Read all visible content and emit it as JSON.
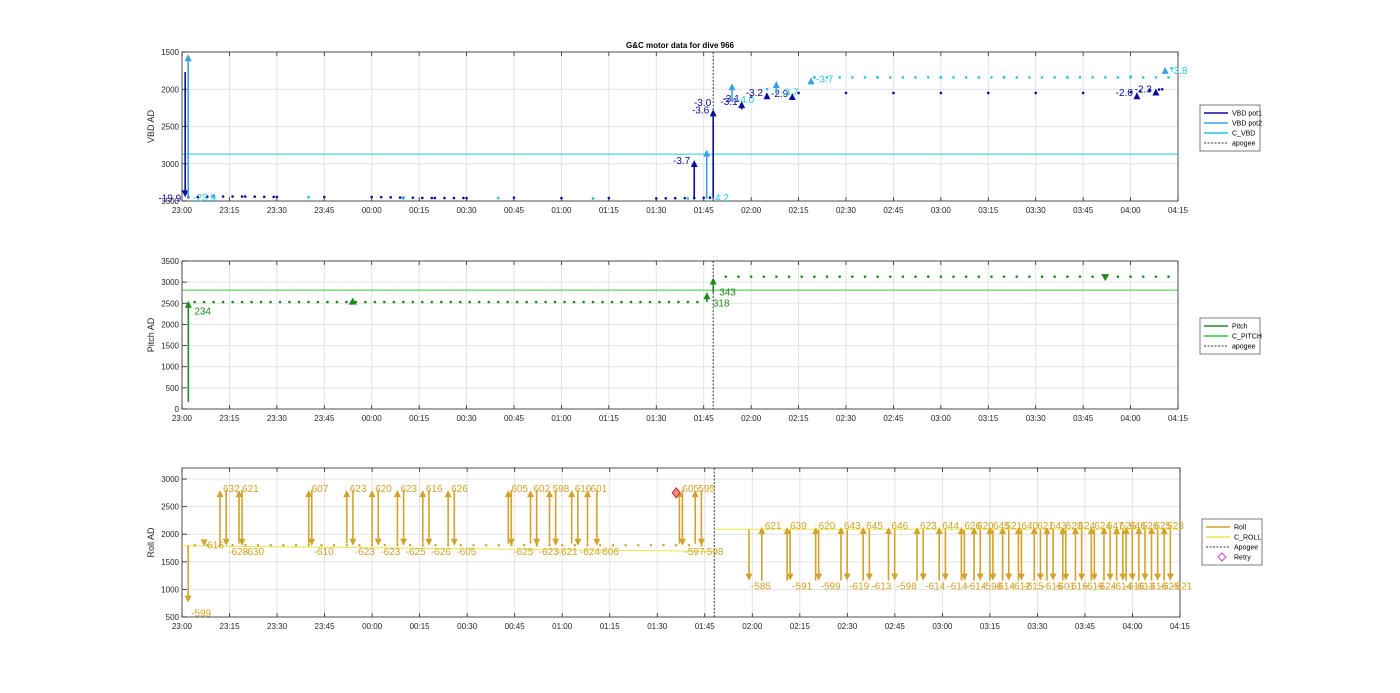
{
  "figure_title": "G&C motor data for dive 966",
  "apogee_time": "01:48",
  "chart_data": [
    {
      "type": "line",
      "name": "vbd",
      "title": "G&C motor data for dive 966",
      "ylabel": "VBD AD",
      "xlim": [
        "23:00",
        "04:15"
      ],
      "ylim": [
        1500,
        3500
      ],
      "y_reversed": true,
      "yticks": [
        1500,
        2000,
        2500,
        3000,
        3500
      ],
      "xtick_labels": [
        "23:00",
        "23:15",
        "23:30",
        "23:45",
        "00:00",
        "00:15",
        "00:30",
        "00:45",
        "01:00",
        "01:15",
        "01:30",
        "01:45",
        "02:00",
        "02:15",
        "02:30",
        "02:45",
        "03:00",
        "03:15",
        "03:30",
        "03:45",
        "04:00",
        "04:15"
      ],
      "grid": true,
      "legend_position": "right",
      "colors": {
        "pot1": "#0b0b9e",
        "pot2": "#3aa0e6",
        "cvbd": "#29c6e0",
        "apogee": "#333333"
      },
      "legend": [
        "VBD pot1",
        "VBD pot2",
        "C_VBD",
        "apogee"
      ],
      "c_vbd": 2870,
      "pot1_dots": [
        [
          "23:02",
          3450
        ],
        [
          "23:10",
          3440
        ],
        [
          "23:20",
          3440
        ],
        [
          "23:30",
          3445
        ],
        [
          "23:45",
          3445
        ],
        [
          "00:00",
          3445
        ],
        [
          "00:10",
          3455
        ],
        [
          "00:20",
          3460
        ],
        [
          "00:30",
          3460
        ],
        [
          "00:45",
          3455
        ],
        [
          "01:00",
          3460
        ],
        [
          "01:15",
          3460
        ],
        [
          "01:30",
          3465
        ],
        [
          "01:42",
          3460
        ],
        [
          "01:47",
          3455
        ],
        [
          "02:00",
          2100
        ],
        [
          "02:15",
          2050
        ],
        [
          "02:30",
          2050
        ],
        [
          "02:45",
          2050
        ],
        [
          "03:00",
          2050
        ],
        [
          "03:15",
          2050
        ],
        [
          "03:30",
          2050
        ],
        [
          "03:45",
          2050
        ],
        [
          "04:00",
          2040
        ],
        [
          "04:10",
          2000
        ]
      ],
      "pot2_dots": [
        [
          "23:10",
          3450
        ],
        [
          "23:40",
          3450
        ],
        [
          "00:10",
          3465
        ],
        [
          "00:40",
          3460
        ],
        [
          "01:10",
          3465
        ],
        [
          "01:40",
          3465
        ],
        [
          "02:05",
          2000
        ],
        [
          "02:20",
          1840
        ],
        [
          "02:40",
          1840
        ],
        [
          "03:00",
          1840
        ],
        [
          "03:20",
          1840
        ],
        [
          "03:40",
          1840
        ],
        [
          "04:00",
          1830
        ],
        [
          "04:13",
          1720
        ]
      ],
      "pot1_moves": [
        [
          "23:01",
          1770,
          3450,
          "-19.9"
        ],
        [
          "01:42",
          3480,
          2950,
          "-3.7"
        ],
        [
          "01:48",
          3470,
          2270,
          "-3.6"
        ],
        [
          "01:57",
          2270,
          2160,
          "-3.1"
        ],
        [
          "02:05",
          2120,
          2040,
          "-3.2"
        ],
        [
          "02:13",
          2100,
          2050,
          "-2.9"
        ],
        [
          "04:02",
          2060,
          2040,
          "-2.0"
        ],
        [
          "04:08",
          2050,
          1990,
          "-2.3"
        ]
      ],
      "pot2_moves": [
        [
          "23:01",
          3470,
          1530,
          "-23.9"
        ],
        [
          "01:45",
          3470,
          2810,
          "-4.2"
        ],
        [
          "01:53",
          2160,
          1920,
          "-4.0"
        ],
        [
          "02:07",
          2060,
          1890,
          "-3.7"
        ],
        [
          "02:18",
          1880,
          1840,
          "-3.7"
        ],
        [
          "04:10",
          1770,
          1700,
          "-3.8"
        ]
      ],
      "ann_labels": [
        "-3.0",
        "-3.1"
      ]
    },
    {
      "type": "line",
      "name": "pitch",
      "ylabel": "Pitch AD",
      "xlim": [
        "23:00",
        "04:15"
      ],
      "ylim": [
        0,
        3500
      ],
      "yticks": [
        0,
        500,
        1000,
        1500,
        2000,
        2500,
        3000,
        3500
      ],
      "xtick_labels": [
        "23:00",
        "23:15",
        "23:30",
        "23:45",
        "00:00",
        "00:15",
        "00:30",
        "00:45",
        "01:00",
        "01:15",
        "01:30",
        "01:45",
        "02:00",
        "02:15",
        "02:30",
        "02:45",
        "03:00",
        "03:15",
        "03:30",
        "03:45",
        "04:00",
        "04:15"
      ],
      "grid": true,
      "legend_position": "right",
      "colors": {
        "pitch": "#1d8a1d",
        "cpitch": "#33cc33",
        "apogee": "#333333"
      },
      "legend": [
        "Pitch",
        "C_PITCH",
        "apogee"
      ],
      "c_pitch": 2810,
      "pitch_dots_before": [
        "23:05",
        "23:20",
        "23:35",
        "23:50",
        "00:05",
        "00:20",
        "00:35",
        "00:50",
        "01:05",
        "01:20",
        "01:35"
      ],
      "pitch_level_before": 2530,
      "pitch_dots_after": [
        "01:53",
        "02:10",
        "02:25",
        "02:40",
        "02:55",
        "03:10",
        "03:25",
        "03:40",
        "03:55",
        "04:10"
      ],
      "pitch_level_after": 3130,
      "moves": [
        [
          "23:02",
          170,
          2560,
          "234"
        ],
        [
          "01:46",
          2530,
          2760,
          "318"
        ],
        [
          "01:48",
          2760,
          3110,
          "343"
        ]
      ],
      "markers": [
        [
          "23:54",
          2540,
          "up"
        ],
        [
          "03:52",
          3120,
          "down"
        ]
      ]
    },
    {
      "type": "line",
      "name": "roll",
      "ylabel": "Roll AD",
      "xlim": [
        "23:00",
        "04:15"
      ],
      "ylim": [
        500,
        3200
      ],
      "yticks": [
        500,
        1000,
        1500,
        2000,
        2500,
        3000
      ],
      "xtick_labels": [
        "23:00",
        "23:15",
        "23:30",
        "23:45",
        "00:00",
        "00:15",
        "00:30",
        "00:45",
        "01:00",
        "01:15",
        "01:30",
        "01:45",
        "02:00",
        "02:15",
        "02:30",
        "02:45",
        "03:00",
        "03:15",
        "03:30",
        "03:45",
        "04:00",
        "04:15"
      ],
      "grid": true,
      "legend_position": "right",
      "colors": {
        "roll": "#d4a22a",
        "croll": "#e8e84a",
        "apogee": "#333333",
        "retry": "#e03ad0"
      },
      "legend": [
        "Roll",
        "C_ROLL",
        "Apogee",
        "Retry"
      ],
      "c_roll_before": [
        1790,
        1690
      ],
      "c_roll_after": 2090,
      "level_before": 1800,
      "level_after": 2090,
      "pairs": [
        [
          "23:07",
          "616",
          "23:01",
          "-599"
        ],
        [
          "23:12",
          "632",
          "23:13",
          "-628"
        ],
        [
          "23:18",
          "621",
          "23:18",
          "-630"
        ],
        [
          "23:40",
          "607",
          "23:40",
          "-610"
        ],
        [
          "23:52",
          "623",
          "23:53",
          "-623"
        ],
        [
          "00:00",
          "620",
          "00:01",
          "-623"
        ],
        [
          "00:08",
          "623",
          "00:09",
          "-625"
        ],
        [
          "00:16",
          "616",
          "00:17",
          "-626"
        ],
        [
          "00:24",
          "626",
          "00:25",
          "-605"
        ],
        [
          "00:43",
          "605",
          "00:43",
          "-625"
        ],
        [
          "00:50",
          "602",
          "00:51",
          "-623"
        ],
        [
          "00:56",
          "598",
          "00:57",
          "-621"
        ],
        [
          "01:03",
          "616",
          "01:04",
          "-624"
        ],
        [
          "01:08",
          "601",
          "01:10",
          "-606"
        ],
        [
          "01:37",
          "605",
          "01:37",
          "-597"
        ],
        [
          "01:42",
          "595",
          "01:43",
          "-598"
        ],
        [
          "02:03",
          "621",
          "01:58",
          "-585"
        ],
        [
          "02:11",
          "639",
          "02:11",
          "-591"
        ],
        [
          "02:20",
          "620",
          "02:20",
          "-599"
        ],
        [
          "02:28",
          "643",
          "02:29",
          "-619"
        ],
        [
          "02:35",
          "645",
          "02:36",
          "-613"
        ],
        [
          "02:43",
          "646",
          "02:44",
          "-598"
        ],
        [
          "02:52",
          "623",
          "02:53",
          "-614"
        ],
        [
          "02:59",
          "644",
          "03:00",
          "-614"
        ],
        [
          "03:06",
          "626",
          "03:06",
          "-614"
        ],
        [
          "03:10",
          "620",
          "03:11",
          "-598"
        ],
        [
          "03:15",
          "645",
          "03:15",
          "-614"
        ],
        [
          "03:19",
          "621",
          "03:20",
          "-612"
        ],
        [
          "03:24",
          "640",
          "03:24",
          "-615"
        ],
        [
          "03:29",
          "621",
          "03:30",
          "-616"
        ],
        [
          "03:33",
          "643",
          "03:34",
          "-601"
        ],
        [
          "03:38",
          "620",
          "03:38",
          "-616"
        ],
        [
          "03:42",
          "624",
          "03:43",
          "-619"
        ],
        [
          "03:47",
          "624",
          "03:47",
          "-624"
        ],
        [
          "03:51",
          "647",
          "03:52",
          "-614"
        ],
        [
          "03:55",
          "626",
          "03:56",
          "-616"
        ],
        [
          "03:58",
          "646",
          "03:59",
          "-613"
        ],
        [
          "04:02",
          "626",
          "04:03",
          "-616"
        ],
        [
          "04:06",
          "625",
          "04:07",
          "-625"
        ],
        [
          "04:10",
          "623",
          "04:11",
          "-621"
        ]
      ],
      "retry_point": [
        "01:36",
        2750
      ]
    }
  ]
}
